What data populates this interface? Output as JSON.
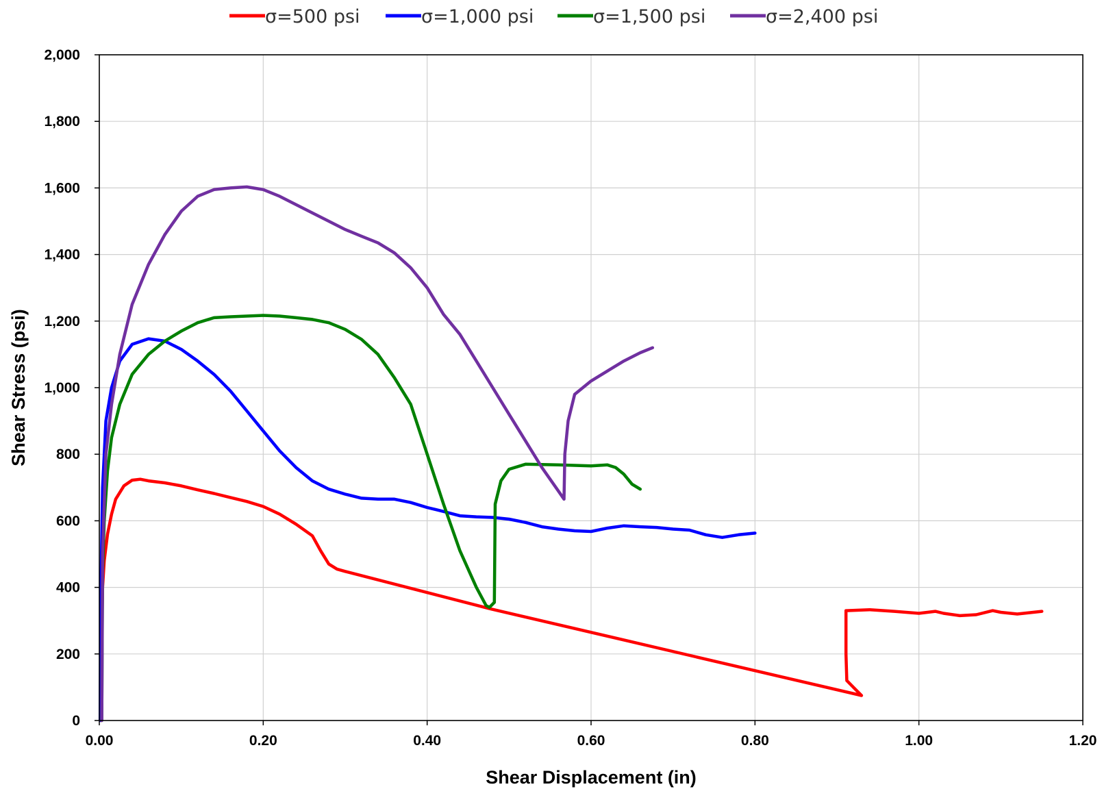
{
  "chart_data": {
    "type": "line",
    "title": "",
    "xlabel": "Shear Displacement (in)",
    "ylabel": "Shear Stress (psi)",
    "xlim": [
      0,
      1.2
    ],
    "ylim": [
      0,
      2000
    ],
    "grid": true,
    "legend_position": "top",
    "x_ticks": [
      "0.00",
      "0.20",
      "0.40",
      "0.60",
      "0.80",
      "1.00",
      "1.20"
    ],
    "y_ticks": [
      "0",
      "200",
      "400",
      "600",
      "800",
      "1,000",
      "1,200",
      "1,400",
      "1,600",
      "1,800",
      "2,000"
    ],
    "series": [
      {
        "name": "σ=500 psi",
        "color": "#ff0000",
        "points": [
          [
            0.002,
            0
          ],
          [
            0.003,
            250
          ],
          [
            0.004,
            400
          ],
          [
            0.006,
            480
          ],
          [
            0.01,
            560
          ],
          [
            0.015,
            620
          ],
          [
            0.02,
            665
          ],
          [
            0.03,
            705
          ],
          [
            0.04,
            722
          ],
          [
            0.05,
            725
          ],
          [
            0.06,
            720
          ],
          [
            0.08,
            714
          ],
          [
            0.1,
            705
          ],
          [
            0.12,
            693
          ],
          [
            0.14,
            682
          ],
          [
            0.16,
            670
          ],
          [
            0.18,
            658
          ],
          [
            0.2,
            643
          ],
          [
            0.22,
            620
          ],
          [
            0.24,
            590
          ],
          [
            0.26,
            555
          ],
          [
            0.27,
            510
          ],
          [
            0.28,
            470
          ],
          [
            0.29,
            455
          ],
          [
            0.3,
            448
          ],
          [
            0.478,
            335
          ],
          [
            0.93,
            75
          ],
          [
            0.922,
            95
          ],
          [
            0.912,
            120
          ],
          [
            0.911,
            200
          ],
          [
            0.911,
            330
          ],
          [
            0.94,
            333
          ],
          [
            0.97,
            328
          ],
          [
            1.0,
            322
          ],
          [
            1.02,
            328
          ],
          [
            1.03,
            322
          ],
          [
            1.05,
            315
          ],
          [
            1.07,
            318
          ],
          [
            1.09,
            330
          ],
          [
            1.1,
            325
          ],
          [
            1.12,
            320
          ],
          [
            1.15,
            328
          ]
        ]
      },
      {
        "name": "σ=1,000 psi",
        "color": "#0000ff",
        "points": [
          [
            0.001,
            0
          ],
          [
            0.002,
            400
          ],
          [
            0.004,
            700
          ],
          [
            0.008,
            900
          ],
          [
            0.015,
            1000
          ],
          [
            0.025,
            1080
          ],
          [
            0.04,
            1130
          ],
          [
            0.06,
            1147
          ],
          [
            0.08,
            1140
          ],
          [
            0.1,
            1115
          ],
          [
            0.12,
            1080
          ],
          [
            0.14,
            1040
          ],
          [
            0.16,
            990
          ],
          [
            0.18,
            930
          ],
          [
            0.2,
            870
          ],
          [
            0.22,
            810
          ],
          [
            0.24,
            760
          ],
          [
            0.26,
            720
          ],
          [
            0.28,
            695
          ],
          [
            0.3,
            680
          ],
          [
            0.32,
            668
          ],
          [
            0.34,
            665
          ],
          [
            0.36,
            665
          ],
          [
            0.38,
            655
          ],
          [
            0.4,
            640
          ],
          [
            0.42,
            628
          ],
          [
            0.44,
            615
          ],
          [
            0.46,
            612
          ],
          [
            0.48,
            610
          ],
          [
            0.5,
            605
          ],
          [
            0.52,
            595
          ],
          [
            0.54,
            582
          ],
          [
            0.56,
            575
          ],
          [
            0.58,
            570
          ],
          [
            0.6,
            568
          ],
          [
            0.62,
            578
          ],
          [
            0.64,
            585
          ],
          [
            0.66,
            582
          ],
          [
            0.68,
            580
          ],
          [
            0.7,
            575
          ],
          [
            0.72,
            572
          ],
          [
            0.74,
            558
          ],
          [
            0.76,
            550
          ],
          [
            0.78,
            558
          ],
          [
            0.8,
            563
          ]
        ]
      },
      {
        "name": "σ=1,500 psi",
        "color": "#008000",
        "points": [
          [
            0.003,
            0
          ],
          [
            0.004,
            450
          ],
          [
            0.006,
            600
          ],
          [
            0.01,
            750
          ],
          [
            0.015,
            850
          ],
          [
            0.025,
            950
          ],
          [
            0.04,
            1040
          ],
          [
            0.06,
            1100
          ],
          [
            0.08,
            1140
          ],
          [
            0.1,
            1170
          ],
          [
            0.12,
            1195
          ],
          [
            0.14,
            1210
          ],
          [
            0.16,
            1213
          ],
          [
            0.18,
            1215
          ],
          [
            0.2,
            1217
          ],
          [
            0.22,
            1215
          ],
          [
            0.24,
            1210
          ],
          [
            0.26,
            1205
          ],
          [
            0.28,
            1195
          ],
          [
            0.3,
            1175
          ],
          [
            0.32,
            1145
          ],
          [
            0.34,
            1100
          ],
          [
            0.36,
            1030
          ],
          [
            0.38,
            950
          ],
          [
            0.4,
            800
          ],
          [
            0.42,
            650
          ],
          [
            0.44,
            510
          ],
          [
            0.46,
            400
          ],
          [
            0.472,
            345
          ],
          [
            0.476,
            340
          ],
          [
            0.482,
            355
          ],
          [
            0.483,
            650
          ],
          [
            0.49,
            720
          ],
          [
            0.5,
            755
          ],
          [
            0.52,
            770
          ],
          [
            0.56,
            768
          ],
          [
            0.6,
            765
          ],
          [
            0.62,
            768
          ],
          [
            0.63,
            760
          ],
          [
            0.64,
            740
          ],
          [
            0.65,
            710
          ],
          [
            0.66,
            695
          ]
        ]
      },
      {
        "name": "σ=2,400 psi",
        "color": "#7030a0",
        "points": [
          [
            0.003,
            0
          ],
          [
            0.004,
            500
          ],
          [
            0.008,
            800
          ],
          [
            0.015,
            950
          ],
          [
            0.025,
            1100
          ],
          [
            0.04,
            1250
          ],
          [
            0.06,
            1370
          ],
          [
            0.08,
            1460
          ],
          [
            0.1,
            1530
          ],
          [
            0.12,
            1575
          ],
          [
            0.14,
            1595
          ],
          [
            0.16,
            1600
          ],
          [
            0.18,
            1603
          ],
          [
            0.2,
            1595
          ],
          [
            0.22,
            1575
          ],
          [
            0.24,
            1550
          ],
          [
            0.26,
            1525
          ],
          [
            0.28,
            1500
          ],
          [
            0.3,
            1475
          ],
          [
            0.32,
            1455
          ],
          [
            0.34,
            1435
          ],
          [
            0.36,
            1405
          ],
          [
            0.38,
            1360
          ],
          [
            0.4,
            1300
          ],
          [
            0.42,
            1220
          ],
          [
            0.44,
            1160
          ],
          [
            0.46,
            1080
          ],
          [
            0.48,
            1000
          ],
          [
            0.5,
            920
          ],
          [
            0.52,
            840
          ],
          [
            0.54,
            760
          ],
          [
            0.56,
            690
          ],
          [
            0.567,
            665
          ],
          [
            0.568,
            800
          ],
          [
            0.572,
            900
          ],
          [
            0.58,
            980
          ],
          [
            0.6,
            1020
          ],
          [
            0.62,
            1050
          ],
          [
            0.64,
            1080
          ],
          [
            0.66,
            1105
          ],
          [
            0.675,
            1120
          ]
        ]
      }
    ]
  }
}
